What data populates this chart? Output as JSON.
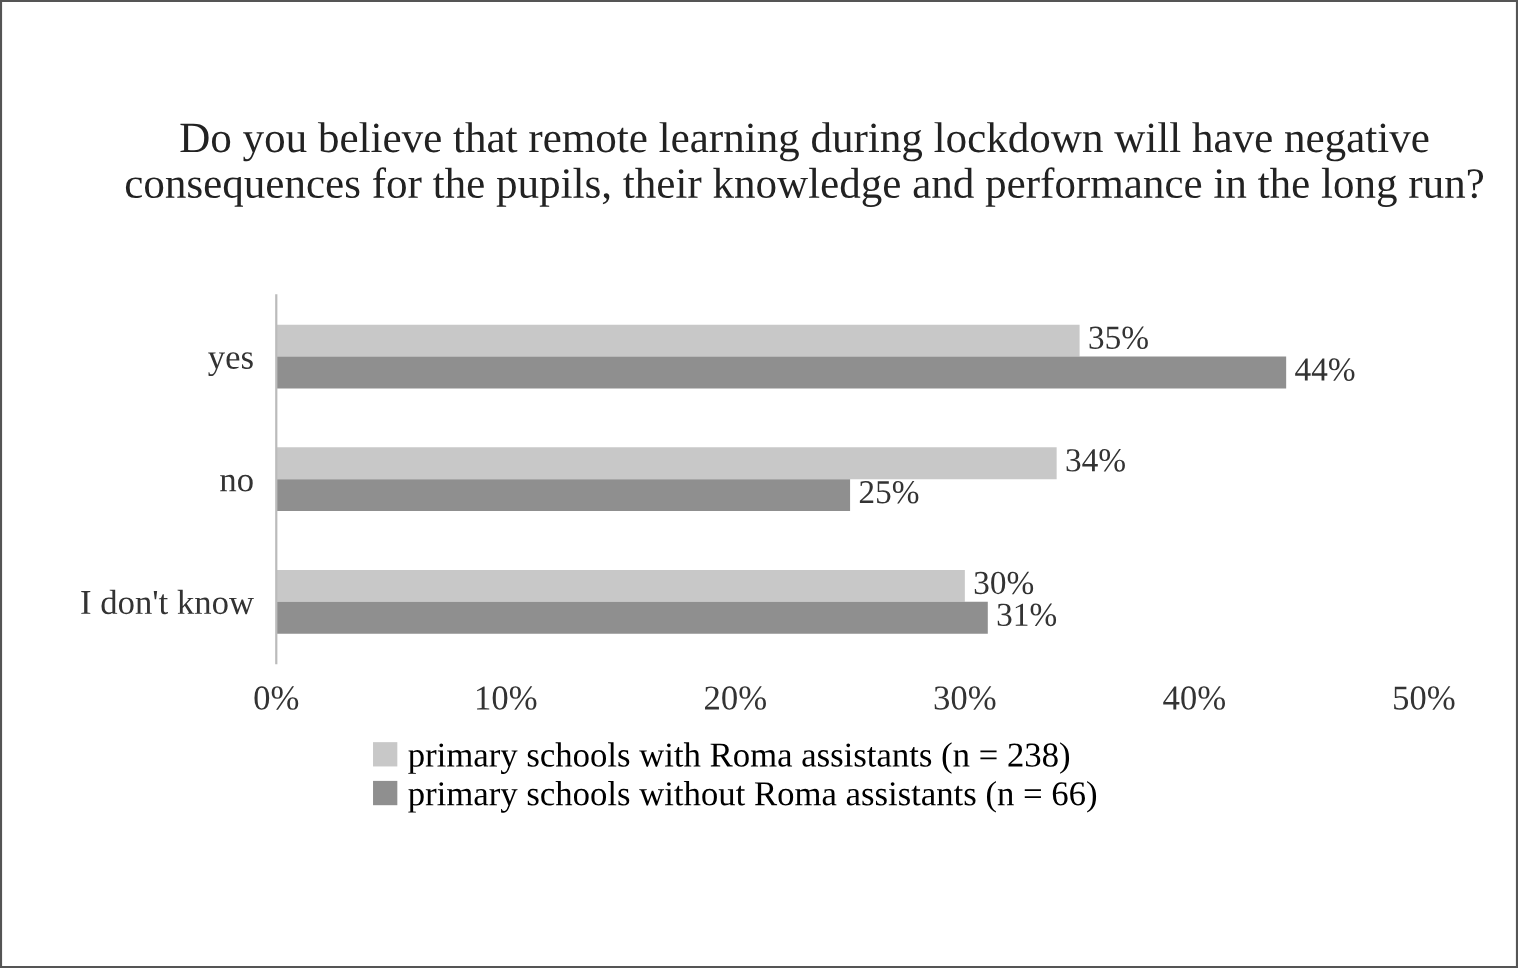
{
  "chart_data": {
    "type": "bar",
    "orientation": "horizontal",
    "title": "Do you believe that remote learning during lockdown will have negative consequences for the pupils, their knowledge and performance in the long run?",
    "categories": [
      "yes",
      "no",
      "I don't know"
    ],
    "series": [
      {
        "name": "primary schools with Roma assistants (n = 238)",
        "color": "#c8c8c8",
        "values": [
          35,
          34,
          30
        ],
        "value_labels": [
          "35%",
          "34%",
          "30%"
        ]
      },
      {
        "name": "primary schools without Roma assistants (n = 66)",
        "color": "#8f8f8f",
        "values": [
          44,
          25,
          31
        ],
        "value_labels": [
          "44%",
          "25%",
          "31%"
        ]
      }
    ],
    "xlim": [
      0,
      50
    ],
    "xticks": [
      {
        "value": 0,
        "label": "0%"
      },
      {
        "value": 10,
        "label": "10%"
      },
      {
        "value": 20,
        "label": "20%"
      },
      {
        "value": 30,
        "label": "30%"
      },
      {
        "value": 40,
        "label": "40%"
      },
      {
        "value": 50,
        "label": "50%"
      }
    ],
    "grid": false,
    "legend": "bottom"
  }
}
